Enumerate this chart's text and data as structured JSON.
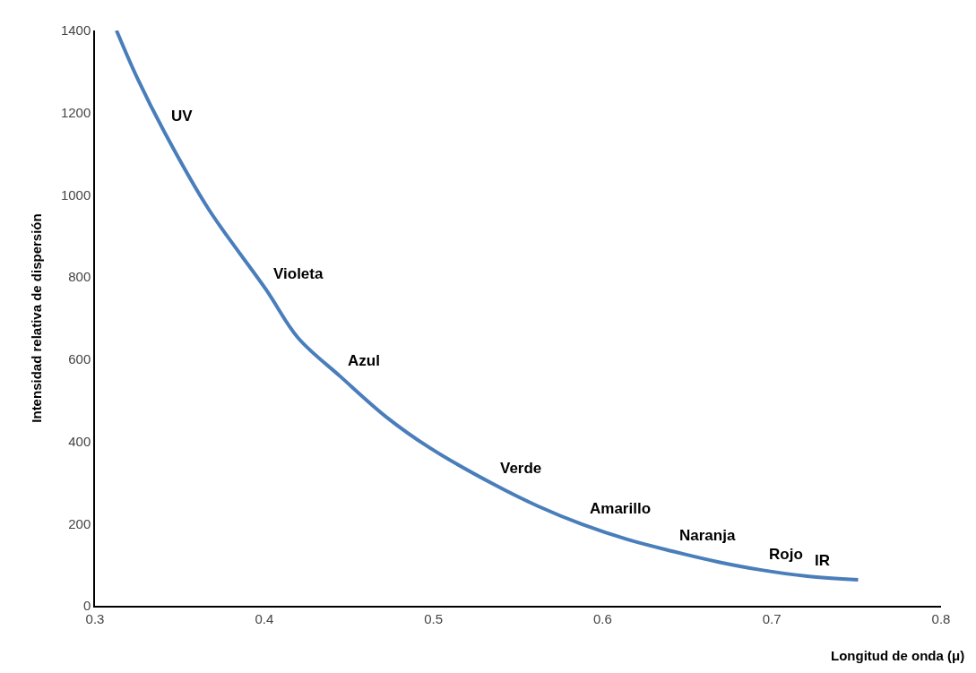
{
  "chart_data": {
    "type": "line",
    "xlabel": "Longitud de onda (μ)",
    "ylabel": "Intensidad relativa de dispersión",
    "xlim": [
      0.3,
      0.8
    ],
    "ylim": [
      0,
      1400
    ],
    "xticks": [
      0.3,
      0.4,
      0.5,
      0.6,
      0.7,
      0.8
    ],
    "yticks": [
      0,
      200,
      400,
      600,
      800,
      1000,
      1200,
      1400
    ],
    "line_style": "solid",
    "series": [
      {
        "color": "#4a7ebb",
        "x": [
          0.3127,
          0.325,
          0.341,
          0.367,
          0.401,
          0.42,
          0.445,
          0.472,
          0.498,
          0.535,
          0.562,
          0.588,
          0.615,
          0.641,
          0.668,
          0.694,
          0.721,
          0.751
        ],
        "values": [
          1400,
          1284,
          1153,
          966,
          770,
          652,
          558,
          460,
          384,
          297,
          242,
          198,
          161,
          133,
          107,
          87,
          72,
          63
        ]
      }
    ],
    "annotations": [
      {
        "text": "UV",
        "x": 0.341,
        "y": 1153
      },
      {
        "text": "Violeta",
        "x": 0.401,
        "y": 770
      },
      {
        "text": "Azul",
        "x": 0.445,
        "y": 558
      },
      {
        "text": "Verde",
        "x": 0.535,
        "y": 297
      },
      {
        "text": "Amarillo",
        "x": 0.588,
        "y": 198
      },
      {
        "text": "Naranja",
        "x": 0.641,
        "y": 133
      },
      {
        "text": "Rojo",
        "x": 0.694,
        "y": 87
      },
      {
        "text": "IR",
        "x": 0.721,
        "y": 72
      }
    ]
  }
}
